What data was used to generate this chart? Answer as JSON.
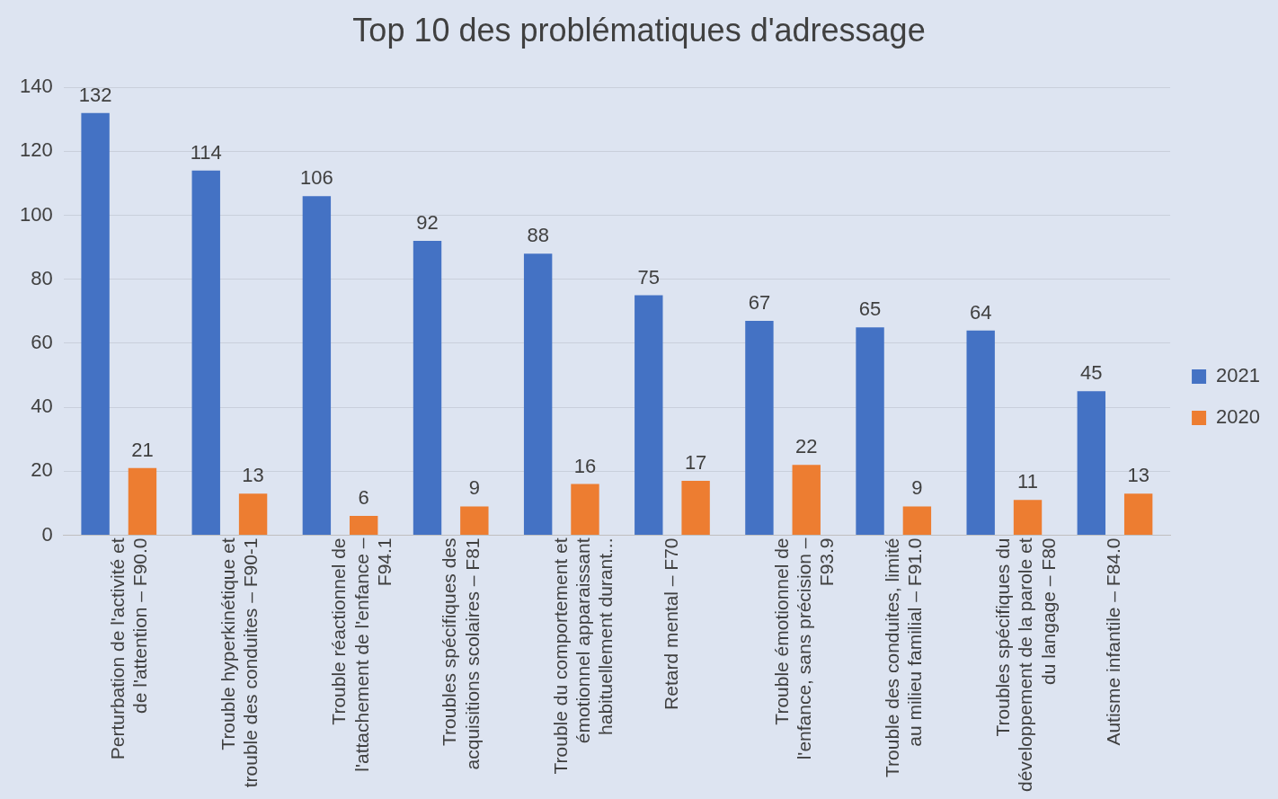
{
  "chart_data": {
    "type": "bar",
    "title": "Top 10 des problématiques d'adressage",
    "categories": [
      "Perturbation de l'activité et de l'attention – F90.0",
      "Trouble hyperkinétique et trouble des conduites – F90-1",
      "Trouble réactionnel de l'attachement de l'enfance – F94.1",
      "Troubles spécifiques des acquisitions scolaires – F81",
      "Trouble du comportement et émotionnel apparaissant habituellement durant...",
      "Retard mental – F70",
      "Trouble émotionnel de l'enfance, sans précision – F93.9",
      "Trouble des conduites, limité au milieu familial – F91.0",
      "Troubles spécifiques du développement de la parole et du langage – F80",
      "Autisme infantile – F84.0"
    ],
    "series": [
      {
        "name": "2021",
        "color": "#4472c4",
        "values": [
          132,
          114,
          106,
          92,
          88,
          75,
          67,
          65,
          64,
          45
        ]
      },
      {
        "name": "2020",
        "color": "#ed7d31",
        "values": [
          21,
          13,
          6,
          9,
          16,
          17,
          22,
          9,
          11,
          13
        ]
      }
    ],
    "ylim": [
      0,
      140
    ],
    "yticks": [
      0,
      20,
      40,
      60,
      80,
      100,
      120,
      140
    ],
    "grid": "y",
    "legend": "right",
    "data_labels": true
  }
}
